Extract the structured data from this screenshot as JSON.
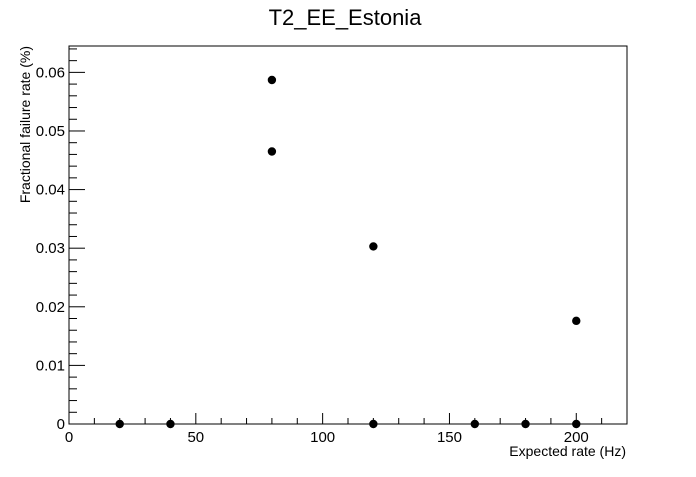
{
  "chart_data": {
    "type": "scatter",
    "title": "T2_EE_Estonia",
    "xlabel": "Expected rate (Hz)",
    "ylabel": "Fractional failure rate (%)",
    "xlim": [
      0,
      220
    ],
    "ylim": [
      0,
      0.0645
    ],
    "x_ticks": [
      0,
      50,
      100,
      150,
      200
    ],
    "y_ticks": [
      0,
      0.01,
      0.02,
      0.03,
      0.04,
      0.05,
      0.06
    ],
    "x_tick_labels": [
      "0",
      "50",
      "100",
      "150",
      "200"
    ],
    "y_tick_labels": [
      "0",
      "0.01",
      "0.02",
      "0.03",
      "0.04",
      "0.05",
      "0.06"
    ],
    "grid": false,
    "legend": "none",
    "marker_color": "#000000",
    "points": [
      {
        "x": 20,
        "y": 0
      },
      {
        "x": 40,
        "y": 0
      },
      {
        "x": 80,
        "y": 0.0587
      },
      {
        "x": 80,
        "y": 0.0465
      },
      {
        "x": 120,
        "y": 0.0303
      },
      {
        "x": 120,
        "y": 0
      },
      {
        "x": 160,
        "y": 0
      },
      {
        "x": 180,
        "y": 0
      },
      {
        "x": 200,
        "y": 0.0176
      },
      {
        "x": 200,
        "y": 0
      }
    ]
  }
}
